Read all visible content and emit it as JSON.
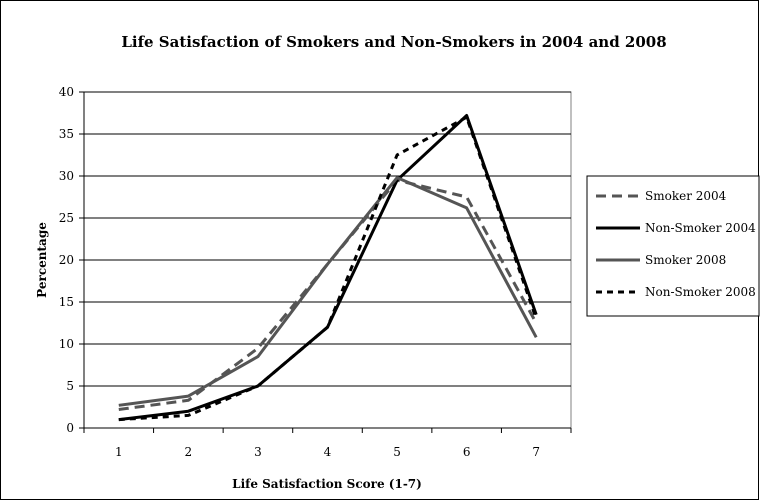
{
  "chart_data": {
    "type": "line",
    "title": "Life Satisfaction of Smokers and Non-Smokers in 2004 and 2008",
    "xlabel": "Life Satisfaction Score (1-7)",
    "ylabel": "Percentage",
    "categories": [
      "1",
      "2",
      "3",
      "4",
      "5",
      "6",
      "7"
    ],
    "ylim": [
      0,
      40
    ],
    "yticks": [
      0,
      5,
      10,
      15,
      20,
      25,
      30,
      35,
      40
    ],
    "grid": true,
    "legend_position": "right",
    "series": [
      {
        "name": "Smoker 2004",
        "values": [
          2.2,
          3.3,
          9.5,
          19.5,
          29.5,
          27.5,
          12.5
        ],
        "color": "#555555",
        "dash": "dashed",
        "width": 3
      },
      {
        "name": "Non-Smoker 2004",
        "values": [
          1.0,
          2.0,
          5.0,
          12.0,
          29.5,
          37.2,
          13.5
        ],
        "color": "#000000",
        "dash": "solid",
        "width": 3
      },
      {
        "name": "Smoker 2008",
        "values": [
          2.7,
          3.8,
          8.5,
          19.5,
          29.8,
          26.2,
          10.8
        ],
        "color": "#555555",
        "dash": "solid",
        "width": 3
      },
      {
        "name": "Non-Smoker 2008",
        "values": [
          1.0,
          1.5,
          5.0,
          12.0,
          32.5,
          37.0,
          13.0
        ],
        "color": "#000000",
        "dash": "dotted",
        "width": 3
      }
    ]
  }
}
